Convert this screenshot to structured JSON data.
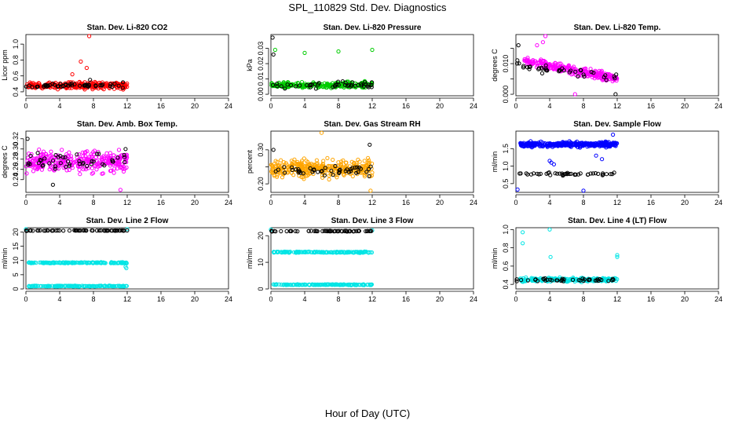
{
  "title": "SPL_110829  Std. Dev. Diagnostics",
  "xlabel": "Hour of Day (UTC)",
  "chart_data": [
    {
      "type": "scatter",
      "title": "Stan. Dev. Li-820 CO2",
      "ylabel": "Licor ppm",
      "xlim": [
        0,
        24
      ],
      "ylim": [
        0.35,
        1.12
      ],
      "xticks": [
        0,
        4,
        8,
        12,
        16,
        20,
        24
      ],
      "yticks": [
        0.4,
        0.6,
        0.8,
        1.0
      ],
      "ytick_labels": [
        "0.4",
        "0.6",
        "0.8",
        "1.0"
      ],
      "series": [
        {
          "name": "colored",
          "color": "#ff0000",
          "xrange": [
            0,
            12
          ],
          "base": 0.48,
          "spread": 0.06,
          "n": 260,
          "extra": [
            [
              7.5,
              1.1
            ],
            [
              6.5,
              0.78
            ],
            [
              7.2,
              0.7
            ],
            [
              5.5,
              0.62
            ]
          ]
        },
        {
          "name": "black",
          "color": "#000000",
          "xrange": [
            0,
            12
          ],
          "base": 0.48,
          "spread": 0.03,
          "n": 50,
          "extra": [
            [
              7.6,
              0.55
            ],
            [
              11.5,
              0.52
            ]
          ]
        }
      ]
    },
    {
      "type": "scatter",
      "title": "Stan. Dev. Li-820 Pressure",
      "ylabel": "kPa",
      "xlim": [
        0,
        24
      ],
      "ylim": [
        -0.001,
        0.039
      ],
      "xticks": [
        0,
        4,
        8,
        12,
        16,
        20,
        24
      ],
      "yticks": [
        0.0,
        0.01,
        0.02,
        0.03
      ],
      "ytick_labels": [
        "0.00",
        "0.01",
        "0.02",
        "0.03"
      ],
      "series": [
        {
          "name": "colored",
          "color": "#00cc00",
          "xrange": [
            0,
            12
          ],
          "base": 0.006,
          "spread": 0.003,
          "n": 260,
          "extra": [
            [
              0.5,
              0.029
            ],
            [
              4.0,
              0.027
            ],
            [
              8.0,
              0.028
            ],
            [
              12.0,
              0.029
            ]
          ]
        },
        {
          "name": "black",
          "color": "#000000",
          "xrange": [
            0,
            12
          ],
          "base": 0.006,
          "spread": 0.003,
          "n": 45,
          "extra": [
            [
              0.2,
              0.037
            ],
            [
              0.3,
              0.026
            ]
          ]
        }
      ]
    },
    {
      "type": "scatter",
      "title": "Stan. Dev. Li-820 Temp.",
      "ylabel": "degrees C",
      "xlim": [
        0,
        24
      ],
      "ylim": [
        -0.0005,
        0.0195
      ],
      "xticks": [
        0,
        4,
        8,
        12,
        16,
        20,
        24
      ],
      "yticks": [
        0.0,
        0.005,
        0.01,
        0.015
      ],
      "ytick_labels": [
        "0.000",
        "",
        "0.010",
        ""
      ],
      "series": [
        {
          "name": "colored",
          "color": "#ff00ff",
          "xrange": [
            1,
            12
          ],
          "base_start": 0.011,
          "base_end": 0.005,
          "spread": 0.002,
          "n": 260,
          "extra": [
            [
              3.5,
              0.019
            ],
            [
              3.2,
              0.017
            ],
            [
              2.5,
              0.016
            ],
            [
              7.0,
              0.0
            ]
          ]
        },
        {
          "name": "black",
          "color": "#000000",
          "xrange": [
            0,
            12
          ],
          "base_start": 0.01,
          "base_end": 0.005,
          "spread": 0.002,
          "n": 40,
          "extra": [
            [
              0.3,
              0.016
            ],
            [
              11.8,
              0.0
            ]
          ]
        }
      ]
    },
    {
      "type": "scatter",
      "title": "Stan. Dev. Amb. Box Temp.",
      "ylabel": "degrees C",
      "xlim": [
        0,
        24
      ],
      "ylim": [
        0.215,
        0.335
      ],
      "xticks": [
        0,
        4,
        8,
        12,
        16,
        20,
        24
      ],
      "yticks": [
        0.24,
        0.26,
        0.28,
        0.3,
        0.32
      ],
      "ytick_labels": [
        "0.24",
        "0.26",
        "0.28",
        "0.30",
        "0.32"
      ],
      "series": [
        {
          "name": "colored",
          "color": "#ff00ff",
          "xrange": [
            0,
            12
          ],
          "base": 0.275,
          "spread": 0.028,
          "n": 300,
          "extra": [
            [
              11.2,
              0.22
            ]
          ]
        },
        {
          "name": "black",
          "color": "#000000",
          "xrange": [
            0,
            12
          ],
          "base": 0.275,
          "spread": 0.025,
          "n": 45,
          "extra": [
            [
              0.2,
              0.32
            ],
            [
              3.2,
              0.23
            ],
            [
              11.8,
              0.3
            ]
          ]
        }
      ]
    },
    {
      "type": "scatter",
      "title": "Stan. Dev. Gas Stream RH",
      "ylabel": "percent",
      "xlim": [
        0,
        24
      ],
      "ylim": [
        0.175,
        0.355
      ],
      "xticks": [
        0,
        4,
        8,
        12,
        16,
        20,
        24
      ],
      "yticks": [
        0.2,
        0.25,
        0.3
      ],
      "ytick_labels": [
        "0.20",
        "",
        "0.30"
      ],
      "series": [
        {
          "name": "colored",
          "color": "#ffa500",
          "xrange": [
            0,
            12
          ],
          "base": 0.245,
          "spread": 0.035,
          "n": 320,
          "extra": [
            [
              6.0,
              0.35
            ],
            [
              11.8,
              0.18
            ]
          ]
        },
        {
          "name": "black",
          "color": "#000000",
          "xrange": [
            0,
            12
          ],
          "base": 0.24,
          "spread": 0.02,
          "n": 45,
          "extra": [
            [
              0.3,
              0.3
            ],
            [
              11.7,
              0.315
            ]
          ]
        }
      ]
    },
    {
      "type": "scatter",
      "title": "Stan. Dev. Sample Flow",
      "ylabel": "ml/min",
      "xlim": [
        0,
        24
      ],
      "ylim": [
        0.25,
        2.0
      ],
      "xticks": [
        0,
        4,
        8,
        12,
        16,
        20,
        24
      ],
      "yticks": [
        0.5,
        1.0,
        1.5
      ],
      "ytick_labels": [
        "0.5",
        "1.0",
        "1.5"
      ],
      "series": [
        {
          "name": "colored",
          "color": "#0000ff",
          "xrange": [
            0.5,
            12
          ],
          "base": 1.62,
          "spread": 0.1,
          "n": 320,
          "extra": [
            [
              0.2,
              0.33
            ],
            [
              8.0,
              0.3
            ],
            [
              4.2,
              1.1
            ],
            [
              4.5,
              1.05
            ],
            [
              4.0,
              1.15
            ],
            [
              9.5,
              1.3
            ],
            [
              10.2,
              1.2
            ],
            [
              11.5,
              1.9
            ]
          ]
        },
        {
          "name": "black",
          "color": "#000000",
          "xrange": [
            0,
            12
          ],
          "base": 0.78,
          "spread": 0.06,
          "n": 45,
          "extra": []
        }
      ]
    },
    {
      "type": "scatter",
      "title": "Stan. Dev. Line 2 Flow",
      "ylabel": "ml/min",
      "xlim": [
        0,
        24
      ],
      "ylim": [
        0,
        21.5
      ],
      "xticks": [
        0,
        4,
        8,
        12,
        16,
        20,
        24
      ],
      "yticks": [
        0,
        5,
        10,
        15,
        20
      ],
      "ytick_labels": [
        "0",
        "5",
        "10",
        "15",
        "20"
      ],
      "series": [
        {
          "name": "cyan-high",
          "color": "#00e5e5",
          "xrange": [
            0.3,
            12
          ],
          "base": 9.2,
          "spread": 0.3,
          "n": 150,
          "extra": [
            [
              11.9,
              7.3
            ],
            [
              11.8,
              7.8
            ],
            [
              0.0,
              21.0
            ],
            [
              12.0,
              21.0
            ]
          ]
        },
        {
          "name": "cyan-low",
          "color": "#00e5e5",
          "xrange": [
            0.3,
            12
          ],
          "base": 1.0,
          "spread": 0.25,
          "n": 150,
          "extra": []
        },
        {
          "name": "black",
          "color": "#000000",
          "xrange": [
            0,
            12
          ],
          "base": 20.5,
          "spread": 0.15,
          "n": 60,
          "extra": []
        }
      ]
    },
    {
      "type": "scatter",
      "title": "Stan. Dev. Line 3 Flow",
      "ylabel": "ml/min",
      "xlim": [
        0,
        24
      ],
      "ylim": [
        0,
        23
      ],
      "xticks": [
        0,
        4,
        8,
        12,
        16,
        20,
        24
      ],
      "yticks": [
        0,
        10,
        20
      ],
      "ytick_labels": [
        "0",
        "10",
        "20"
      ],
      "series": [
        {
          "name": "cyan-high",
          "color": "#00e5e5",
          "xrange": [
            0.3,
            12
          ],
          "base": 13.8,
          "spread": 0.3,
          "n": 150,
          "extra": [
            [
              0.0,
              22.3
            ],
            [
              12.0,
              22.0
            ]
          ]
        },
        {
          "name": "cyan-low",
          "color": "#00e5e5",
          "xrange": [
            0.3,
            12
          ],
          "base": 1.6,
          "spread": 0.25,
          "n": 150,
          "extra": []
        },
        {
          "name": "black",
          "color": "#000000",
          "xrange": [
            0,
            12
          ],
          "base": 21.7,
          "spread": 0.2,
          "n": 60,
          "extra": []
        }
      ]
    },
    {
      "type": "scatter",
      "title": "Stan. Dev. Line 4 (LT) Flow",
      "ylabel": "ml/min",
      "xlim": [
        0,
        24
      ],
      "ylim": [
        0.35,
        1.02
      ],
      "xticks": [
        0,
        4,
        8,
        12,
        16,
        20,
        24
      ],
      "yticks": [
        0.4,
        0.6,
        0.8,
        1.0
      ],
      "ytick_labels": [
        "0.4",
        "0.6",
        "0.8",
        "1.0"
      ],
      "series": [
        {
          "name": "colored",
          "color": "#00e5e5",
          "xrange": [
            0.5,
            12
          ],
          "base": 0.45,
          "spread": 0.03,
          "n": 230,
          "extra": [
            [
              0.8,
              0.97
            ],
            [
              4.0,
              1.0
            ],
            [
              4.1,
              0.7
            ],
            [
              0.8,
              0.85
            ],
            [
              12.0,
              0.7
            ],
            [
              12.0,
              0.72
            ]
          ]
        },
        {
          "name": "black",
          "color": "#000000",
          "xrange": [
            0,
            12
          ],
          "base": 0.45,
          "spread": 0.025,
          "n": 40,
          "extra": []
        }
      ]
    }
  ]
}
